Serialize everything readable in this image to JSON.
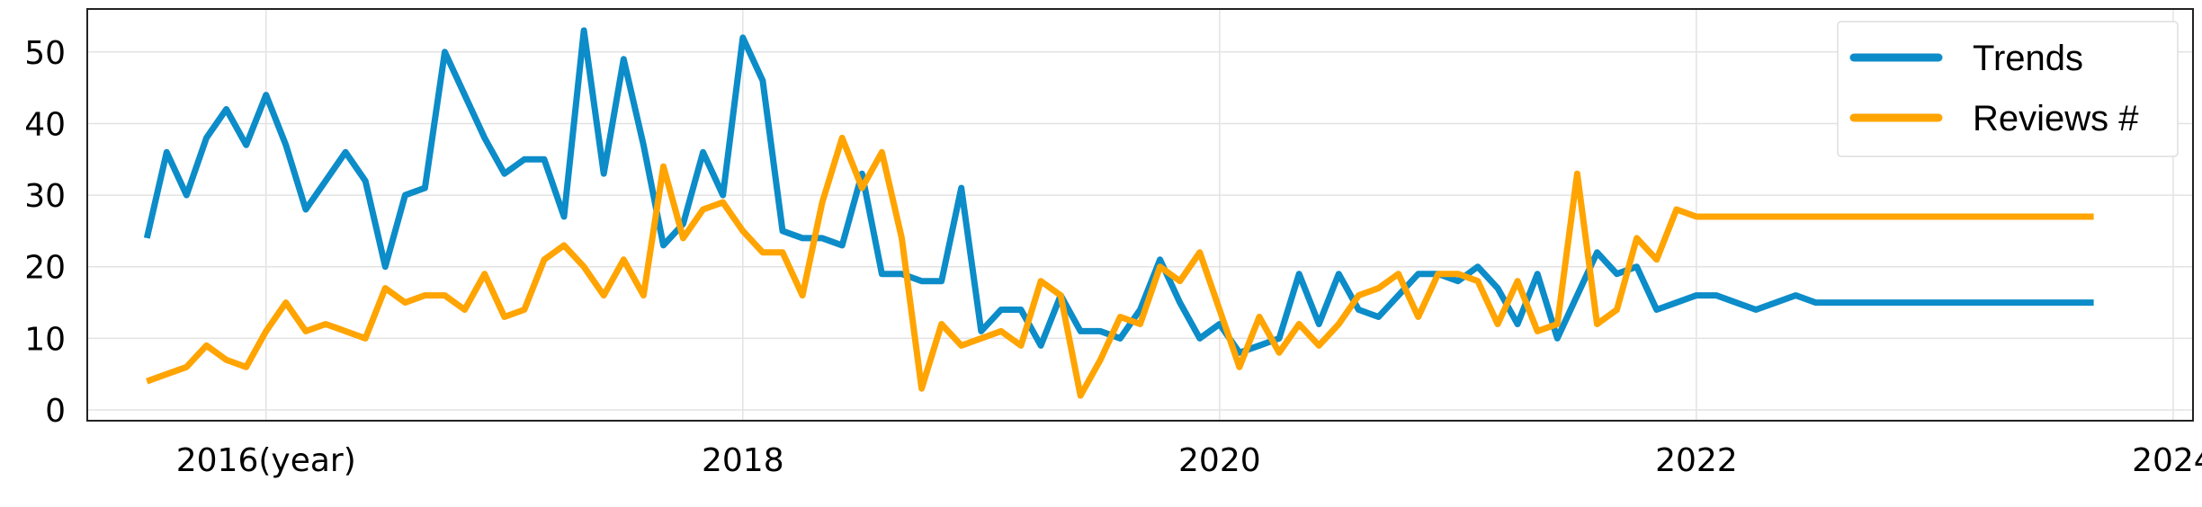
{
  "chart_data": {
    "type": "line",
    "title": "",
    "xlabel": "",
    "ylabel": "",
    "x_axis_kind": "date",
    "xlim": [
      "2015-04-01",
      "2024-02-01"
    ],
    "ylim": [
      -1.5,
      56
    ],
    "x_ticks": [
      {
        "date": "2016-01-01",
        "label": "2016(year)"
      },
      {
        "date": "2018-01-01",
        "label": "2018"
      },
      {
        "date": "2020-01-01",
        "label": "2020"
      },
      {
        "date": "2022-01-01",
        "label": "2022"
      },
      {
        "date": "2024-01-01",
        "label": "2024"
      }
    ],
    "y_ticks": [
      {
        "value": 0,
        "label": "0"
      },
      {
        "value": 10,
        "label": "10"
      },
      {
        "value": 20,
        "label": "20"
      },
      {
        "value": 30,
        "label": "30"
      },
      {
        "value": 40,
        "label": "40"
      },
      {
        "value": 50,
        "label": "50"
      }
    ],
    "grid": true,
    "legend_position": "top-right",
    "x": [
      "2015-07",
      "2015-08",
      "2015-09",
      "2015-10",
      "2015-11",
      "2015-12",
      "2016-01",
      "2016-02",
      "2016-03",
      "2016-04",
      "2016-05",
      "2016-06",
      "2016-07",
      "2016-08",
      "2016-09",
      "2016-10",
      "2016-11",
      "2016-12",
      "2017-01",
      "2017-02",
      "2017-03",
      "2017-04",
      "2017-05",
      "2017-06",
      "2017-07",
      "2017-08",
      "2017-09",
      "2017-10",
      "2017-11",
      "2017-12",
      "2018-01",
      "2018-02",
      "2018-03",
      "2018-04",
      "2018-05",
      "2018-06",
      "2018-07",
      "2018-08",
      "2018-09",
      "2018-10",
      "2018-11",
      "2018-12",
      "2019-01",
      "2019-02",
      "2019-03",
      "2019-04",
      "2019-05",
      "2019-06",
      "2019-07",
      "2019-08",
      "2019-09",
      "2019-10",
      "2019-11",
      "2019-12",
      "2020-01",
      "2020-02",
      "2020-03",
      "2020-04",
      "2020-05",
      "2020-06",
      "2020-07",
      "2020-08",
      "2020-09",
      "2020-10",
      "2020-11",
      "2020-12",
      "2021-01",
      "2021-02",
      "2021-03",
      "2021-04",
      "2021-05",
      "2021-06",
      "2021-07",
      "2021-08",
      "2021-09",
      "2021-10",
      "2021-11",
      "2021-12",
      "2022-01",
      "2022-02",
      "2022-03",
      "2022-04",
      "2022-05",
      "2022-06",
      "2022-07",
      "2022-08",
      "2022-09",
      "2022-10",
      "2022-11",
      "2022-12",
      "2023-01",
      "2023-02",
      "2023-03",
      "2023-04",
      "2023-05",
      "2023-06",
      "2023-07",
      "2023-08",
      "2023-09"
    ],
    "series": [
      {
        "name": "Trends",
        "color": "#0c8cc8",
        "values": [
          24,
          36,
          30,
          38,
          42,
          37,
          44,
          37,
          28,
          32,
          36,
          32,
          20,
          30,
          31,
          50,
          44,
          38,
          33,
          35,
          35,
          27,
          53,
          33,
          49,
          37,
          23,
          26,
          36,
          30,
          52,
          46,
          25,
          24,
          24,
          23,
          33,
          19,
          19,
          18,
          18,
          31,
          11,
          14,
          14,
          9,
          16,
          11,
          11,
          10,
          14,
          21,
          15,
          10,
          12,
          8,
          9,
          10,
          19,
          12,
          19,
          14,
          13,
          16,
          19,
          19,
          18,
          20,
          17,
          12,
          19,
          10,
          16,
          22,
          19,
          20,
          14,
          15,
          16,
          16,
          15,
          14,
          15,
          16,
          15,
          15,
          15,
          15,
          15,
          15,
          15,
          15,
          15,
          15,
          15,
          15,
          15,
          15,
          15
        ]
      },
      {
        "name": "Reviews #",
        "color": "#ffa400",
        "values": [
          4,
          5,
          6,
          9,
          7,
          6,
          11,
          15,
          11,
          12,
          11,
          10,
          17,
          15,
          16,
          16,
          14,
          19,
          13,
          14,
          21,
          23,
          20,
          16,
          21,
          16,
          34,
          24,
          28,
          29,
          25,
          22,
          22,
          16,
          29,
          38,
          31,
          36,
          24,
          3,
          12,
          9,
          10,
          11,
          9,
          18,
          16,
          2,
          7,
          13,
          12,
          20,
          18,
          22,
          14,
          6,
          13,
          8,
          12,
          9,
          12,
          16,
          17,
          19,
          13,
          19,
          19,
          18,
          12,
          18,
          11,
          12,
          33,
          12,
          14,
          24,
          21,
          28,
          27,
          27,
          27,
          27,
          27,
          27,
          27,
          27,
          27,
          27,
          27,
          27,
          27,
          27,
          27,
          27,
          27,
          27,
          27,
          27,
          27
        ]
      }
    ]
  }
}
